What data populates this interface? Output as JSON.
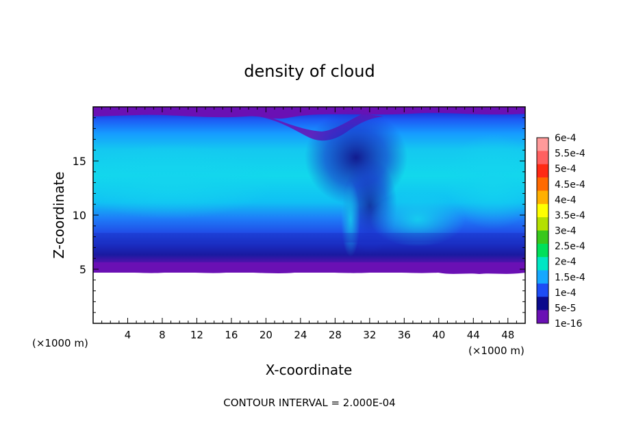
{
  "chart_data": {
    "type": "heatmap",
    "title": "density of cloud",
    "xlabel": "X-coordinate",
    "ylabel": "Z-coordinate",
    "x_unit": "(×1000 m)",
    "z_unit": "(×1000 m)",
    "xlim": [
      0,
      50
    ],
    "ylim": [
      0,
      20
    ],
    "x_ticks": [
      4,
      8,
      12,
      16,
      20,
      24,
      28,
      32,
      36,
      40,
      44,
      48
    ],
    "y_ticks": [
      5,
      10,
      15
    ],
    "note": "CONTOUR INTERVAL = 2.000E-04",
    "colorbar": {
      "labels": [
        "6e-4",
        "5.5e-4",
        "5e-4",
        "4.5e-4",
        "4e-4",
        "3.5e-4",
        "3e-4",
        "2.5e-4",
        "2e-4",
        "1.5e-4",
        "1e-4",
        "5e-5",
        "1e-16"
      ],
      "colors": [
        "#ff9a9a",
        "#ff6060",
        "#ff2a14",
        "#ff6a00",
        "#ffb000",
        "#ffff00",
        "#b4e000",
        "#39c81c",
        "#00e05a",
        "#00e6c4",
        "#16a8ff",
        "#1d4cf5",
        "#0a0a8c",
        "#6a10b4"
      ]
    },
    "cloud_base_km": 5.2,
    "cloud_top_km": 19.5
  }
}
